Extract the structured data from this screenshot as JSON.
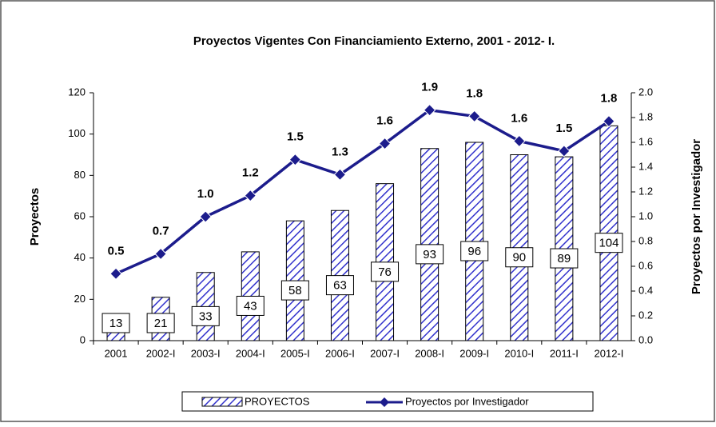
{
  "chart_data": {
    "type": "bar_line",
    "title": "Proyectos  Vigentes Con Financiamiento Externo, 2001 - 2012- I.",
    "y_label": "Proyectos",
    "y2_label": "Proyectos por Investigador",
    "categories": [
      "2001",
      "2002-I",
      "2003-I",
      "2004-I",
      "2005-I",
      "2006-I",
      "2007-I",
      "2008-I",
      "2009-I",
      "2010-I",
      "2011-I",
      "2012-I"
    ],
    "series": [
      {
        "name": "PROYECTOS",
        "type": "bar",
        "color": "#3333cc",
        "values": [
          13,
          21,
          33,
          43,
          58,
          63,
          76,
          93,
          96,
          90,
          89,
          104
        ]
      },
      {
        "name": "Proyectos por Investigador",
        "type": "line",
        "axis": "y2",
        "color": "#1c1c8c",
        "values": [
          0.54,
          0.7,
          1.0,
          1.17,
          1.46,
          1.34,
          1.59,
          1.86,
          1.81,
          1.61,
          1.53,
          1.77
        ],
        "value_labels": [
          "0.5",
          "0.7",
          "1.0",
          "1.2",
          "1.5",
          "1.3",
          "1.6",
          "1.9",
          "1.8",
          "1.6",
          "1.5",
          "1.8"
        ]
      }
    ],
    "ylim": [
      0,
      120
    ],
    "yticks": [
      0,
      20,
      40,
      60,
      80,
      100,
      120
    ],
    "y2lim": [
      0,
      2
    ],
    "y2ticks": [
      {
        "value": 0,
        "label": "0.0"
      },
      0.2,
      0.4,
      0.6,
      0.8,
      {
        "value": 1,
        "label": "1.0"
      },
      1.2,
      1.4,
      1.6,
      1.8,
      {
        "value": 2,
        "label": "2.0"
      }
    ]
  }
}
